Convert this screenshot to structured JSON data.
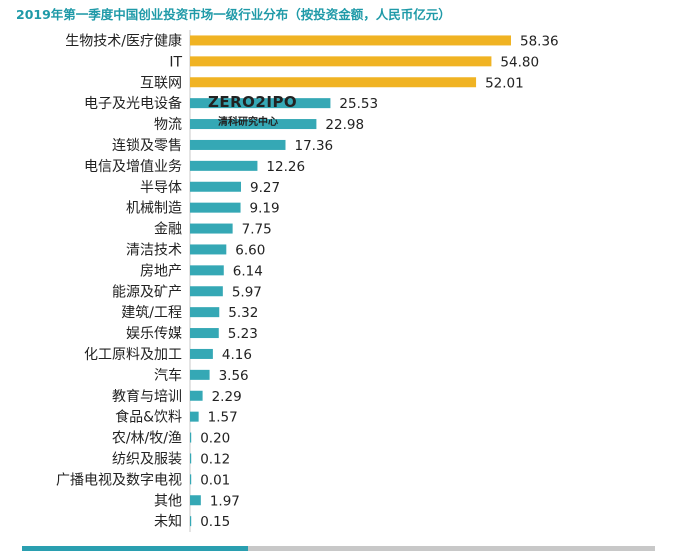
{
  "colors": {
    "title": "#1f9aa8",
    "highlight": "#f0b323",
    "bar": "#35a8b5",
    "axis": "#c9c9c9",
    "text": "#222222",
    "footer_teal": "#2a9fb0",
    "footer_gray": "#c8c8c8"
  },
  "watermark": {
    "main": "ZERO2IPO",
    "sub": "清科研究中心"
  },
  "chart_data": {
    "type": "bar",
    "orientation": "horizontal",
    "title": "2019年第一季度中国创业投资市场一级行业分布（按投资金额，人民币亿元）",
    "categories": [
      "生物技术/医疗健康",
      "IT",
      "互联网",
      "电子及光电设备",
      "物流",
      "连锁及零售",
      "电信及增值业务",
      "半导体",
      "机械制造",
      "金融",
      "清洁技术",
      "房地产",
      "能源及矿产",
      "建筑/工程",
      "娱乐传媒",
      "化工原料及加工",
      "汽车",
      "教育与培训",
      "食品&饮料",
      "农/林/牧/渔",
      "纺织及服装",
      "广播电视及数字电视",
      "其他",
      "未知"
    ],
    "values": [
      58.36,
      54.8,
      52.01,
      25.53,
      22.98,
      17.36,
      12.26,
      9.27,
      9.19,
      7.75,
      6.6,
      6.14,
      5.97,
      5.32,
      5.23,
      4.16,
      3.56,
      2.29,
      1.57,
      0.2,
      0.12,
      0.01,
      1.97,
      0.15
    ],
    "value_labels": [
      "58.36",
      "54.80",
      "52.01",
      "25.53",
      "22.98",
      "17.36",
      "12.26",
      "9.27",
      "9.19",
      "7.75",
      "6.60",
      "6.14",
      "5.97",
      "5.32",
      "5.23",
      "4.16",
      "3.56",
      "2.29",
      "1.57",
      "0.20",
      "0.12",
      "0.01",
      "1.97",
      "0.15"
    ],
    "highlighted_categories": [
      "生物技术/医疗健康",
      "IT",
      "互联网"
    ],
    "xlim": [
      0,
      60
    ],
    "grid": false,
    "legend": "none"
  }
}
